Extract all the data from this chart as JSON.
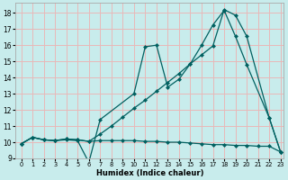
{
  "xlabel": "Humidex (Indice chaleur)",
  "bg_color": "#c8ecec",
  "grid_color": "#e8b8b8",
  "line_color": "#006060",
  "xlim_min": -0.5,
  "xlim_max": 23.3,
  "ylim_min": 9.0,
  "ylim_max": 18.6,
  "xticks": [
    0,
    1,
    2,
    3,
    4,
    5,
    6,
    7,
    8,
    9,
    10,
    11,
    12,
    13,
    14,
    15,
    16,
    17,
    18,
    19,
    20,
    21,
    22,
    23
  ],
  "yticks": [
    9,
    10,
    11,
    12,
    13,
    14,
    15,
    16,
    17,
    18
  ],
  "line1_x": [
    0,
    1,
    2,
    3,
    4,
    5,
    6,
    7,
    8,
    9,
    10,
    11,
    12,
    13,
    14,
    15,
    16,
    17,
    18,
    19,
    20,
    21,
    22,
    23
  ],
  "line1_y": [
    9.9,
    10.3,
    10.15,
    10.1,
    10.2,
    10.15,
    10.05,
    10.1,
    10.1,
    10.1,
    10.1,
    10.05,
    10.05,
    10.0,
    10.0,
    9.95,
    9.9,
    9.85,
    9.85,
    9.8,
    9.8,
    9.75,
    9.75,
    9.4
  ],
  "line2_x": [
    0,
    1,
    2,
    3,
    4,
    5,
    6,
    7,
    10,
    11,
    12,
    13,
    14,
    15,
    16,
    17,
    18,
    19,
    20,
    22,
    23
  ],
  "line2_y": [
    9.9,
    10.3,
    10.15,
    10.1,
    10.15,
    10.1,
    8.75,
    11.4,
    13.0,
    15.9,
    16.0,
    13.4,
    13.9,
    14.85,
    16.0,
    17.25,
    18.15,
    16.55,
    14.8,
    11.5,
    9.4
  ],
  "line3_x": [
    0,
    1,
    2,
    3,
    4,
    5,
    6,
    7,
    8,
    9,
    10,
    11,
    12,
    13,
    14,
    15,
    16,
    17,
    18,
    19,
    20,
    22,
    23
  ],
  "line3_y": [
    9.9,
    10.3,
    10.15,
    10.1,
    10.2,
    10.15,
    10.05,
    10.5,
    11.0,
    11.55,
    12.1,
    12.6,
    13.15,
    13.7,
    14.25,
    14.85,
    15.4,
    15.95,
    18.2,
    17.85,
    16.55,
    11.5,
    9.4
  ]
}
